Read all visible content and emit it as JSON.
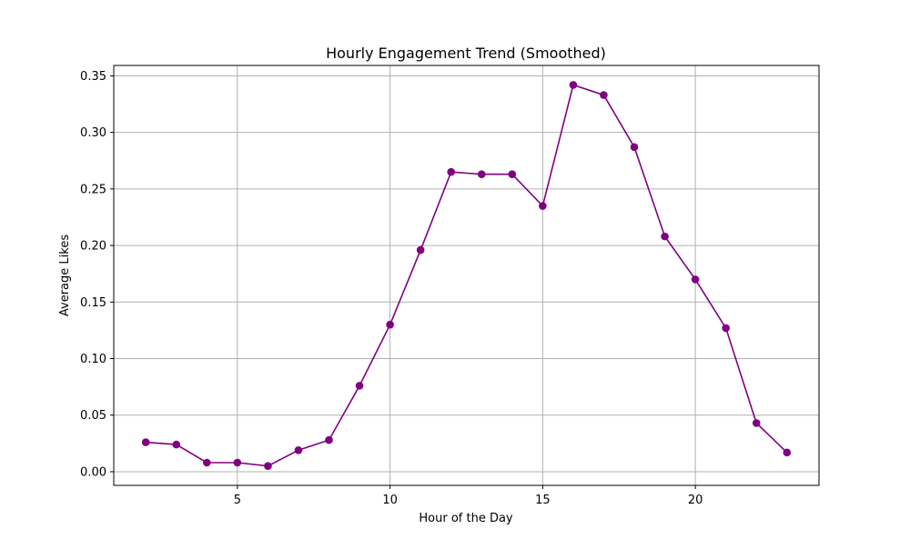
{
  "chart_data": {
    "type": "line",
    "title": "Hourly Engagement Trend (Smoothed)",
    "xlabel": "Hour of the Day",
    "ylabel": "Average Likes",
    "x": [
      2,
      3,
      4,
      5,
      6,
      7,
      8,
      9,
      10,
      11,
      12,
      13,
      14,
      15,
      16,
      17,
      18,
      19,
      20,
      21,
      22,
      23
    ],
    "series": [
      {
        "values": [
          0.026,
          0.024,
          0.008,
          0.008,
          0.005,
          0.019,
          0.028,
          0.076,
          0.13,
          0.196,
          0.265,
          0.263,
          0.263,
          0.235,
          0.342,
          0.333,
          0.287,
          0.208,
          0.17,
          0.127,
          0.043,
          0.017
        ],
        "color": "#800080",
        "marker": "circle"
      }
    ],
    "xlim": [
      0.95,
      24.05
    ],
    "ylim": [
      -0.0121,
      0.3592
    ],
    "xticks": [
      5,
      10,
      15,
      20
    ],
    "xtick_labels": [
      "5",
      "10",
      "15",
      "20"
    ],
    "yticks": [
      0.0,
      0.05,
      0.1,
      0.15,
      0.2,
      0.25,
      0.3,
      0.35
    ],
    "ytick_labels": [
      "0.00",
      "0.05",
      "0.10",
      "0.15",
      "0.20",
      "0.25",
      "0.30",
      "0.35"
    ],
    "grid": true
  }
}
